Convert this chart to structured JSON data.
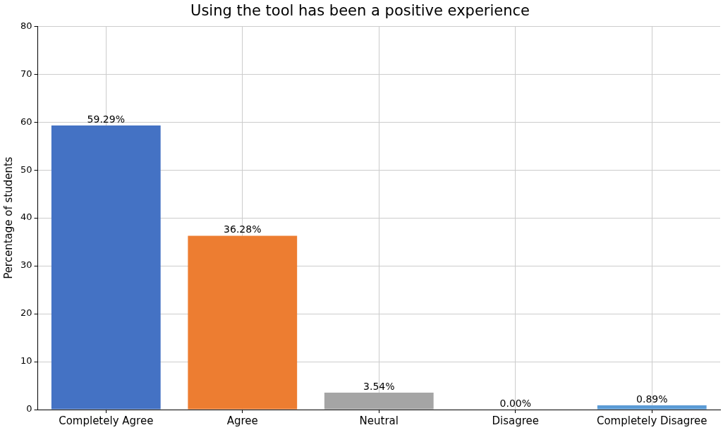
{
  "chart_data": {
    "type": "bar",
    "title": "Using the tool has been a positive experience",
    "ylabel": "Percentage of students",
    "categories": [
      "Completely Agree",
      "Agree",
      "Neutral",
      "Disagree",
      "Completely Disagree"
    ],
    "values": [
      59.29,
      36.28,
      3.54,
      0.0,
      0.89
    ],
    "colors": [
      "#4472c4",
      "#ed7d31",
      "#a5a5a5",
      "#ffc000",
      "#5b9bd5"
    ],
    "value_labels": [
      "59.29%",
      "36.28%",
      "3.54%",
      "0.00%",
      "0.89%"
    ],
    "ylim": [
      0,
      80
    ],
    "yticks": [
      0,
      10,
      20,
      30,
      40,
      50,
      60,
      70,
      80
    ],
    "grid": true,
    "legend": false
  }
}
